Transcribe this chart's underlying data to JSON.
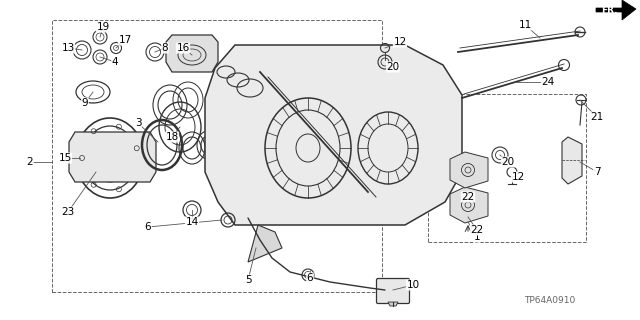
{
  "background_color": "#ffffff",
  "diagram_code": "TP64A0910",
  "line_color": "#333333",
  "label_fontsize": 7.5
}
